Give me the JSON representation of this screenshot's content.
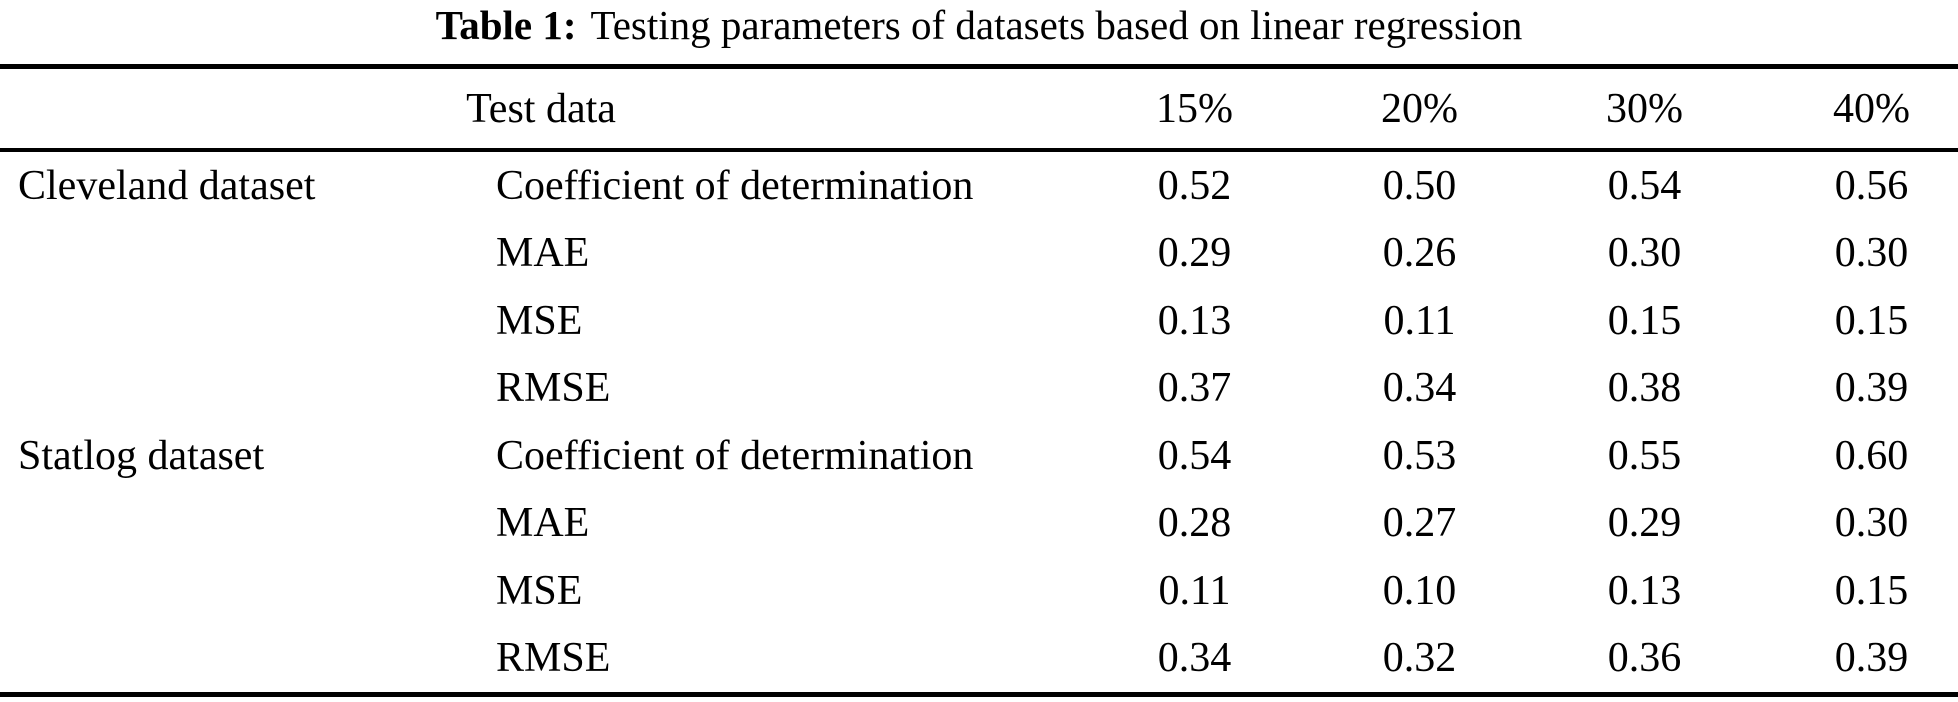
{
  "caption": {
    "label": "Table 1:",
    "text": "Testing parameters of datasets based on linear regression"
  },
  "table": {
    "header": {
      "group_label": "Test data",
      "columns": [
        "15%",
        "20%",
        "30%",
        "40%"
      ]
    },
    "groups": [
      {
        "dataset": "Cleveland dataset",
        "rows": [
          {
            "metric": "Coefficient of determination",
            "values": [
              "0.52",
              "0.50",
              "0.54",
              "0.56"
            ]
          },
          {
            "metric": "MAE",
            "values": [
              "0.29",
              "0.26",
              "0.30",
              "0.30"
            ]
          },
          {
            "metric": "MSE",
            "values": [
              "0.13",
              "0.11",
              "0.15",
              "0.15"
            ]
          },
          {
            "metric": "RMSE",
            "values": [
              "0.37",
              "0.34",
              "0.38",
              "0.39"
            ]
          }
        ]
      },
      {
        "dataset": "Statlog dataset",
        "rows": [
          {
            "metric": "Coefficient of determination",
            "values": [
              "0.54",
              "0.53",
              "0.55",
              "0.60"
            ]
          },
          {
            "metric": "MAE",
            "values": [
              "0.28",
              "0.27",
              "0.29",
              "0.30"
            ]
          },
          {
            "metric": "MSE",
            "values": [
              "0.11",
              "0.10",
              "0.13",
              "0.15"
            ]
          },
          {
            "metric": "RMSE",
            "values": [
              "0.34",
              "0.32",
              "0.36",
              "0.39"
            ]
          }
        ]
      }
    ]
  },
  "chart_data": {
    "type": "table",
    "title": "Table 1: Testing parameters of datasets based on linear regression",
    "columns": [
      "Dataset",
      "Metric",
      "15%",
      "20%",
      "30%",
      "40%"
    ],
    "rows": [
      [
        "Cleveland dataset",
        "Coefficient of determination",
        0.52,
        0.5,
        0.54,
        0.56
      ],
      [
        "Cleveland dataset",
        "MAE",
        0.29,
        0.26,
        0.3,
        0.3
      ],
      [
        "Cleveland dataset",
        "MSE",
        0.13,
        0.11,
        0.15,
        0.15
      ],
      [
        "Cleveland dataset",
        "RMSE",
        0.37,
        0.34,
        0.38,
        0.39
      ],
      [
        "Statlog dataset",
        "Coefficient of determination",
        0.54,
        0.53,
        0.55,
        0.6
      ],
      [
        "Statlog dataset",
        "MAE",
        0.28,
        0.27,
        0.29,
        0.3
      ],
      [
        "Statlog dataset",
        "MSE",
        0.11,
        0.1,
        0.13,
        0.15
      ],
      [
        "Statlog dataset",
        "RMSE",
        0.34,
        0.32,
        0.36,
        0.39
      ]
    ]
  }
}
